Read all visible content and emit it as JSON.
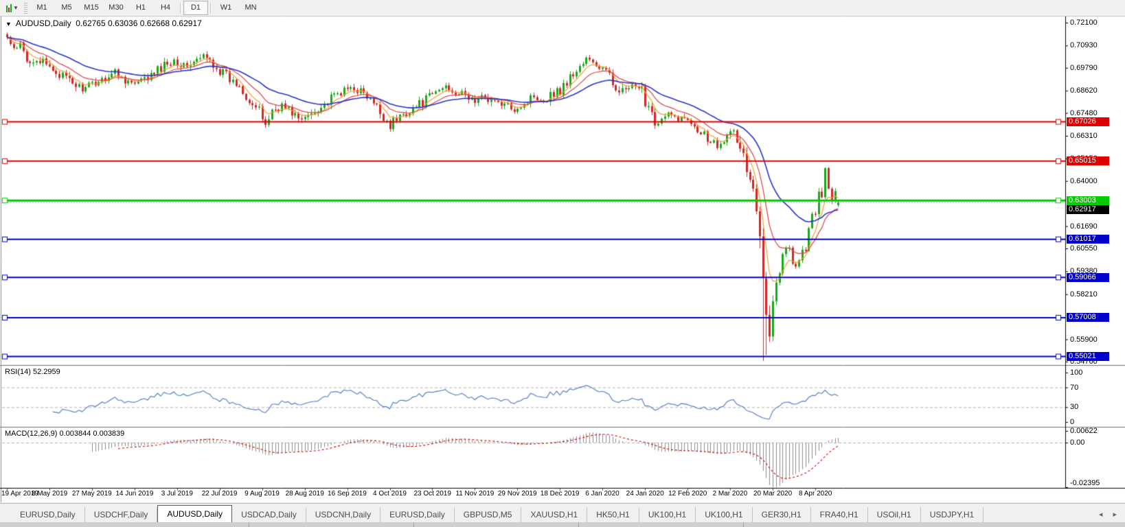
{
  "toolbar": {
    "timeframes": [
      "M1",
      "M5",
      "M15",
      "M30",
      "H1",
      "H4",
      "D1",
      "W1",
      "MN"
    ],
    "active_timeframe": "D1",
    "cursor_tool_icon": "chart-cursor"
  },
  "chart": {
    "title_symbol": "AUDUSD,Daily",
    "title_ohlc": "0.62765 0.63036 0.62668 0.62917"
  },
  "indicators": {
    "rsi_label": "RSI(14) 52.2959",
    "macd_label": "MACD(12,26,9) 0.003844 0.003839"
  },
  "axes": {
    "main_ticks": [
      "0.72100",
      "0.70930",
      "0.69790",
      "0.68620",
      "0.67480",
      "0.66310",
      "0.65150",
      "0.64000",
      "0.61690",
      "0.60550",
      "0.59380",
      "0.58210",
      "0.55900",
      "0.54760"
    ],
    "rsi_ticks": [
      "100",
      "70",
      "30",
      "0"
    ],
    "macd_ticks": [
      "0.00622",
      "0.00",
      "-0.02395"
    ]
  },
  "hlines": [
    {
      "price": "0.67026",
      "value": 0.67026,
      "color": "#e00000",
      "width": 2
    },
    {
      "price": "0.65015",
      "value": 0.65015,
      "color": "#e00000",
      "width": 2
    },
    {
      "price": "0.63003",
      "value": 0.63003,
      "color": "#00cc00",
      "width": 3
    },
    {
      "price": "0.61017",
      "value": 0.61017,
      "color": "#0000cc",
      "width": 2
    },
    {
      "price": "0.59066",
      "value": 0.59066,
      "color": "#0000cc",
      "width": 2
    },
    {
      "price": "0.57008",
      "value": 0.57008,
      "color": "#0000cc",
      "width": 2
    },
    {
      "price": "0.55021",
      "value": 0.55021,
      "color": "#0000cc",
      "width": 2
    }
  ],
  "bid_label": {
    "price": "0.62917",
    "value": 0.62917,
    "color": "#000000"
  },
  "dates": [
    "19 Apr 2019",
    "8 May 2019",
    "27 May 2019",
    "14 Jun 2019",
    "3 Jul 2019",
    "22 Jul 2019",
    "9 Aug 2019",
    "28 Aug 2019",
    "16 Sep 2019",
    "4 Oct 2019",
    "23 Oct 2019",
    "11 Nov 2019",
    "29 Nov 2019",
    "18 Dec 2019",
    "6 Jan 2020",
    "24 Jan 2020",
    "12 Feb 2020",
    "2 Mar 2020",
    "20 Mar 2020",
    "8 Apr 2020"
  ],
  "tabs": {
    "items": [
      "EURUSD,Daily",
      "USDCHF,Daily",
      "AUDUSD,Daily",
      "USDCAD,Daily",
      "USDCNH,Daily",
      "EURUSD,Daily",
      "GBPUSD,M5",
      "XAUUSD,H1",
      "HK50,H1",
      "UK100,H1",
      "UK100,H1",
      "GER30,H1",
      "FRA40,H1",
      "USOil,H1",
      "USDJPY,H1"
    ],
    "active_index": 2,
    "scroll_arrows": "◂ ▸"
  },
  "colors": {
    "candle_up": "#18a818",
    "candle_down": "#d42626",
    "ma_fast": "#f0a030",
    "ma_mid": "#e04040",
    "ma_slow": "#2633cc",
    "rsi_line": "#4a78c8",
    "macd_hist": "#8c8c8c",
    "macd_signal": "#d00000",
    "grid_dash": "#b4b4b4",
    "bid_line": "#a8a8a8"
  },
  "chart_data": {
    "type": "candlestick",
    "symbol": "AUDUSD",
    "timeframe": "Daily",
    "title": "AUDUSD,Daily",
    "ohlc_last": {
      "open": 0.62765,
      "high": 0.63036,
      "low": 0.62668,
      "close": 0.62917
    },
    "x_range": [
      "19 Apr 2019",
      "21 Apr 2020"
    ],
    "y_range": [
      0.5476,
      0.721
    ],
    "num_candles": 255,
    "close_anchors": [
      [
        0,
        0.7135
      ],
      [
        2,
        0.7062
      ],
      [
        4,
        0.7082
      ],
      [
        6,
        0.701
      ],
      [
        9,
        0.7028
      ],
      [
        12,
        0.6988
      ],
      [
        15,
        0.696
      ],
      [
        18,
        0.6922
      ],
      [
        21,
        0.689
      ],
      [
        24,
        0.6868
      ],
      [
        27,
        0.6905
      ],
      [
        30,
        0.693
      ],
      [
        33,
        0.6958
      ],
      [
        36,
        0.692
      ],
      [
        39,
        0.6892
      ],
      [
        42,
        0.6918
      ],
      [
        45,
        0.6948
      ],
      [
        48,
        0.6995
      ],
      [
        51,
        0.7022
      ],
      [
        54,
        0.6988
      ],
      [
        57,
        0.7005
      ],
      [
        60,
        0.7035
      ],
      [
        63,
        0.7005
      ],
      [
        66,
        0.695
      ],
      [
        69,
        0.6905
      ],
      [
        72,
        0.688
      ],
      [
        75,
        0.68
      ],
      [
        77,
        0.6745
      ],
      [
        79,
        0.6698
      ],
      [
        81,
        0.676
      ],
      [
        84,
        0.6785
      ],
      [
        87,
        0.6755
      ],
      [
        90,
        0.67
      ],
      [
        92,
        0.6738
      ],
      [
        95,
        0.6772
      ],
      [
        98,
        0.6802
      ],
      [
        101,
        0.6845
      ],
      [
        104,
        0.6868
      ],
      [
        106,
        0.6885
      ],
      [
        109,
        0.6842
      ],
      [
        112,
        0.6788
      ],
      [
        115,
        0.6735
      ],
      [
        117,
        0.6688
      ],
      [
        120,
        0.673
      ],
      [
        123,
        0.6762
      ],
      [
        126,
        0.6792
      ],
      [
        129,
        0.6828
      ],
      [
        132,
        0.6865
      ],
      [
        134,
        0.6888
      ],
      [
        137,
        0.6855
      ],
      [
        140,
        0.6838
      ],
      [
        143,
        0.6808
      ],
      [
        146,
        0.6832
      ],
      [
        149,
        0.6805
      ],
      [
        152,
        0.6788
      ],
      [
        155,
        0.6772
      ],
      [
        158,
        0.6795
      ],
      [
        161,
        0.6838
      ],
      [
        164,
        0.6815
      ],
      [
        166,
        0.6842
      ],
      [
        169,
        0.6868
      ],
      [
        172,
        0.6928
      ],
      [
        175,
        0.6985
      ],
      [
        177,
        0.7022
      ],
      [
        179,
        0.7
      ],
      [
        182,
        0.6972
      ],
      [
        185,
        0.6895
      ],
      [
        188,
        0.6862
      ],
      [
        191,
        0.6878
      ],
      [
        194,
        0.6852
      ],
      [
        197,
        0.6762
      ],
      [
        199,
        0.6695
      ],
      [
        202,
        0.6738
      ],
      [
        205,
        0.6718
      ],
      [
        208,
        0.6722
      ],
      [
        211,
        0.6682
      ],
      [
        214,
        0.6618
      ],
      [
        217,
        0.6592
      ],
      [
        220,
        0.6648
      ],
      [
        222,
        0.6638
      ],
      [
        224,
        0.658
      ],
      [
        226,
        0.646
      ],
      [
        228,
        0.6322
      ],
      [
        230,
        0.6128
      ],
      [
        231,
        0.5962
      ],
      [
        232,
        0.577
      ],
      [
        233,
        0.566
      ],
      [
        234,
        0.5802
      ],
      [
        235,
        0.5878
      ],
      [
        236,
        0.5962
      ],
      [
        238,
        0.6038
      ],
      [
        239,
        0.6072
      ],
      [
        241,
        0.5978
      ],
      [
        243,
        0.6022
      ],
      [
        245,
        0.6142
      ],
      [
        247,
        0.6238
      ],
      [
        249,
        0.6362
      ],
      [
        250,
        0.6442
      ],
      [
        251,
        0.6368
      ],
      [
        252,
        0.6295
      ],
      [
        253,
        0.6348
      ],
      [
        254,
        0.62917
      ]
    ],
    "special_lows": [
      [
        231,
        0.548
      ],
      [
        232,
        0.551
      ]
    ],
    "horizontal_levels": [
      0.67026,
      0.65015,
      0.63003,
      0.61017,
      0.59066,
      0.57008,
      0.55021
    ],
    "current_bid": 0.62917,
    "indicators": {
      "rsi": {
        "period": 14,
        "last": 52.2959,
        "levels": [
          70,
          30
        ],
        "scale": [
          0,
          100
        ]
      },
      "macd": {
        "fast": 12,
        "slow": 26,
        "signal": 9,
        "last_main": 0.003844,
        "last_signal": 0.003839,
        "scale": [
          -0.02395,
          0.00622
        ]
      },
      "moving_averages": [
        {
          "name": "fast",
          "period": 6,
          "color": "#f0a030"
        },
        {
          "name": "mid",
          "period": 13,
          "color": "#e04040"
        },
        {
          "name": "slow",
          "period": 30,
          "color": "#2633cc"
        }
      ]
    },
    "legend_position": "none",
    "grid": "off"
  }
}
